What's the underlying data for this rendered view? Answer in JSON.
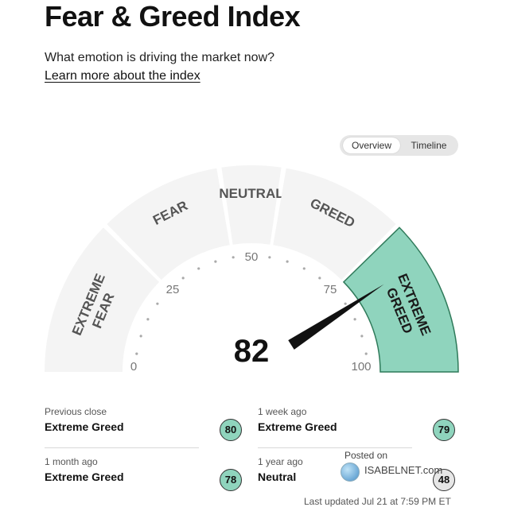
{
  "header": {
    "title": "Fear & Greed Index",
    "subtitle": "What emotion is driving the market now?",
    "learn_more": "Learn more about the index"
  },
  "view_toggle": {
    "options": [
      "Overview",
      "Timeline"
    ],
    "active": "Overview"
  },
  "gauge": {
    "value": 82,
    "min": 0,
    "max": 100,
    "tick_labels": [
      "0",
      "25",
      "50",
      "75",
      "100"
    ],
    "segments": [
      {
        "label": "EXTREME FEAR",
        "from": 0,
        "to": 25,
        "active": false
      },
      {
        "label": "FEAR",
        "from": 25,
        "to": 45,
        "active": false
      },
      {
        "label": "NEUTRAL",
        "from": 45,
        "to": 55,
        "active": false
      },
      {
        "label": "GREED",
        "from": 55,
        "to": 75,
        "active": false
      },
      {
        "label": "EXTREME GREED",
        "from": 75,
        "to": 100,
        "active": true
      }
    ],
    "colors": {
      "inactive": "#f4f4f4",
      "active": "#8fd4bd",
      "active_border": "#2f7a5a",
      "needle": "#111111",
      "label": "#555555"
    }
  },
  "history": [
    {
      "label": "Previous close",
      "rating": "Extreme Greed",
      "value": "80",
      "color": "#8fd4bd"
    },
    {
      "label": "1 week ago",
      "rating": "Extreme Greed",
      "value": "79",
      "color": "#8fd4bd"
    },
    {
      "label": "1 month ago",
      "rating": "Extreme Greed",
      "value": "78",
      "color": "#8fd4bd"
    },
    {
      "label": "1 year ago",
      "rating": "Neutral",
      "value": "48",
      "color": "#e6e6e6"
    }
  ],
  "watermark": {
    "posted": "Posted on",
    "brand": "ISABELNET.com"
  },
  "last_updated": "Last updated Jul 21 at 7:59 PM ET"
}
